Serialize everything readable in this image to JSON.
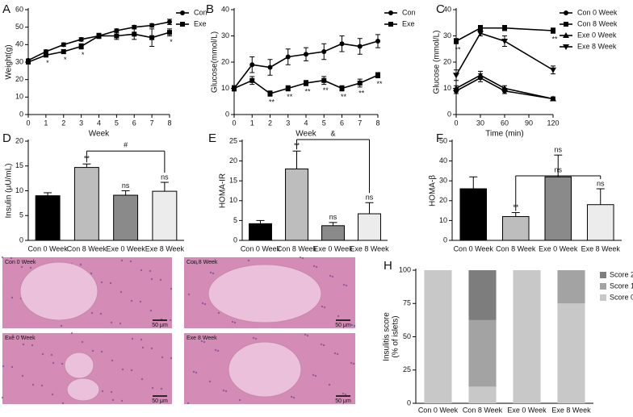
{
  "chart_data": [
    {
      "type": "line",
      "title": "A",
      "xlabel": "Week",
      "ylabel": "Weight(g)",
      "x": [
        0,
        1,
        2,
        3,
        4,
        5,
        6,
        7,
        8
      ],
      "xlim": [
        0,
        8
      ],
      "xticks": [
        0,
        1,
        2,
        3,
        4,
        5,
        6,
        7,
        8
      ],
      "ylim": [
        0,
        60
      ],
      "yticks": [
        0,
        10,
        20,
        30,
        40,
        50,
        60
      ],
      "legend": "right",
      "series": [
        {
          "name": "Con",
          "color": "#000000",
          "marker": "circle",
          "values": [
            31,
            36,
            40,
            43,
            45,
            48,
            50,
            51,
            53
          ],
          "errors": [
            0.8,
            1,
            1,
            1,
            1,
            1,
            1,
            1,
            1.5
          ]
        },
        {
          "name": "Exe",
          "color": "#000000",
          "marker": "square",
          "values": [
            30,
            34,
            36,
            39,
            45,
            45,
            46,
            44,
            47
          ],
          "errors": [
            0.8,
            1,
            1.2,
            1.5,
            1.5,
            2,
            3,
            5,
            2
          ],
          "point_labels": [
            null,
            "*",
            "*",
            "*",
            null,
            null,
            null,
            null,
            "*"
          ]
        }
      ]
    },
    {
      "type": "line",
      "title": "B",
      "xlabel": "Week",
      "ylabel": "Glucose(mmol/L)",
      "x": [
        0,
        1,
        2,
        3,
        4,
        5,
        6,
        7,
        8
      ],
      "xlim": [
        0,
        8
      ],
      "xticks": [
        0,
        1,
        2,
        3,
        4,
        5,
        6,
        7,
        8
      ],
      "ylim": [
        0,
        40
      ],
      "yticks": [
        0,
        10,
        20,
        30,
        40
      ],
      "legend": "right",
      "series": [
        {
          "name": "Con",
          "color": "#000000",
          "marker": "circle",
          "values": [
            10,
            19,
            18,
            22,
            23,
            24,
            27,
            26,
            28
          ],
          "errors": [
            1,
            3,
            3,
            3,
            2.5,
            3,
            3,
            3,
            2.5
          ]
        },
        {
          "name": "Exe",
          "color": "#000000",
          "marker": "square",
          "values": [
            10,
            13,
            8,
            10,
            12,
            13,
            10,
            12,
            15
          ],
          "errors": [
            1,
            1.5,
            1,
            1,
            1,
            1.5,
            1,
            1.5,
            1
          ],
          "point_labels": [
            null,
            null,
            "**",
            "**",
            "**",
            "**",
            "**",
            "**",
            "**"
          ]
        }
      ]
    },
    {
      "type": "line",
      "title": "C",
      "xlabel": "Time (min)",
      "ylabel": "Glucose (mmol/L)",
      "x": [
        0,
        30,
        60,
        120
      ],
      "xlim": [
        0,
        120
      ],
      "xticks": [
        0,
        30,
        60,
        90,
        120
      ],
      "ylim": [
        0,
        40
      ],
      "yticks": [
        0,
        10,
        20,
        30,
        40
      ],
      "legend": "right",
      "series": [
        {
          "name": "Con 0 Week",
          "color": "#000000",
          "marker": "circle",
          "values": [
            9,
            14,
            9,
            6
          ],
          "errors": [
            1,
            1.5,
            1,
            0.7
          ]
        },
        {
          "name": "Con 8 Week",
          "color": "#000000",
          "marker": "square",
          "values": [
            28,
            33,
            33,
            32
          ],
          "errors": [
            1,
            1,
            1,
            1
          ],
          "point_labels": [
            "**",
            null,
            null,
            "**"
          ]
        },
        {
          "name": "Exe 0 Week",
          "color": "#000000",
          "marker": "triangle",
          "values": [
            10,
            15,
            10,
            6
          ],
          "errors": [
            1,
            1.5,
            1,
            0.7
          ]
        },
        {
          "name": "Exe 8 Week",
          "color": "#000000",
          "marker": "triangle-down",
          "values": [
            15,
            31,
            28,
            17
          ],
          "errors": [
            2,
            1,
            2,
            1.5
          ]
        }
      ]
    },
    {
      "type": "bar",
      "title": "D",
      "ylabel": "Insulin (μU/mL)",
      "categories": [
        "Con 0 Week",
        "Con 8 Week",
        "Exe 0 Week",
        "Exe 8 Week"
      ],
      "values": [
        9,
        14.7,
        9.1,
        9.9
      ],
      "errors": [
        0.6,
        0.7,
        0.9,
        1.8
      ],
      "colors": [
        "#000000",
        "#bdbdbd",
        "#8a8a8a",
        "#ececec"
      ],
      "value_annotations": [
        null,
        "**",
        "ns",
        "ns"
      ],
      "bracket": {
        "label": "#",
        "between": [
          1,
          3
        ]
      },
      "ylim": [
        0,
        20
      ],
      "yticks": [
        0,
        5,
        10,
        15,
        20
      ]
    },
    {
      "type": "bar",
      "title": "E",
      "ylabel": "HOMA-IR",
      "categories": [
        "Con 0 Week",
        "Con 8 Week",
        "Exe 0 Week",
        "Exe 8 Week"
      ],
      "values": [
        4.2,
        18,
        3.7,
        6.7
      ],
      "errors": [
        0.8,
        4.5,
        0.8,
        2.8
      ],
      "colors": [
        "#000000",
        "#bdbdbd",
        "#8a8a8a",
        "#ececec"
      ],
      "value_annotations": [
        null,
        "**",
        "ns",
        "ns"
      ],
      "bracket": {
        "label": "&",
        "between": [
          1,
          3
        ]
      },
      "ylim": [
        0,
        25
      ],
      "yticks": [
        0,
        5,
        10,
        15,
        20,
        25
      ]
    },
    {
      "type": "bar",
      "title": "F",
      "ylabel": "HOMA-β",
      "categories": [
        "Con 0 Week",
        "Con 8 Week",
        "Exe 0 Week",
        "Exe 8 Week"
      ],
      "values": [
        26,
        12,
        32,
        18
      ],
      "errors": [
        6,
        2,
        11,
        8
      ],
      "colors": [
        "#000000",
        "#bdbdbd",
        "#8a8a8a",
        "#ececec"
      ],
      "value_annotations": [
        null,
        "**",
        "ns",
        "ns"
      ],
      "bracket": {
        "label": "ns",
        "between": [
          1,
          3
        ]
      },
      "ylim": [
        0,
        50
      ],
      "yticks": [
        0,
        10,
        20,
        30,
        40,
        50
      ]
    },
    {
      "type": "stacked_bar",
      "title": "H",
      "ylabel": [
        "Insulitis score",
        "(% of islets)"
      ],
      "categories": [
        "Con 0 Week",
        "Con 8 Week",
        "Exe 0 Week",
        "Exe 8 Week"
      ],
      "series": [
        {
          "name": "Score 0",
          "color": "#c8c8c8",
          "values": [
            100,
            12.5,
            100,
            75
          ]
        },
        {
          "name": "Score 1",
          "color": "#a3a3a3",
          "values": [
            0,
            50,
            0,
            25
          ]
        },
        {
          "name": "Score 2",
          "color": "#7d7d7d",
          "values": [
            0,
            37.5,
            0,
            0
          ]
        }
      ],
      "ylim": [
        0,
        100
      ],
      "yticks": [
        0,
        25,
        50,
        75,
        100
      ],
      "legend": "right"
    }
  ],
  "panel_g": {
    "title": "G",
    "images": [
      {
        "label": "Con 0 Week",
        "scale": "50 μm"
      },
      {
        "label": "Con 8 Week",
        "scale": "50 μm"
      },
      {
        "label": "Exe 0 Week",
        "scale": "50 μm"
      },
      {
        "label": "Exe 8 Week",
        "scale": "50 μm"
      }
    ]
  }
}
